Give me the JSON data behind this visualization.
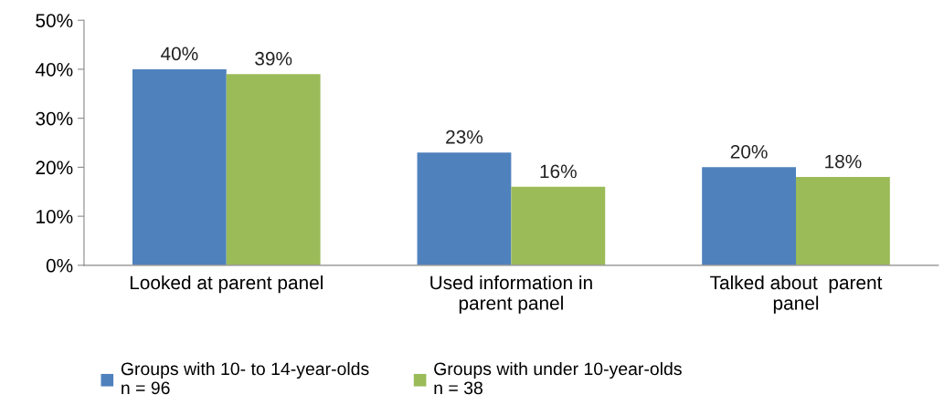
{
  "chart_data": {
    "type": "bar",
    "categories": [
      "Looked at parent panel",
      "Used information in\nparent panel",
      "Talked about  parent\npanel"
    ],
    "series": [
      {
        "name": "Groups with 10- to 14-year-olds\nn = 96",
        "color": "#4f81bd",
        "values": [
          40,
          23,
          20
        ],
        "value_labels": [
          "40%",
          "23%",
          "20%"
        ]
      },
      {
        "name": "Groups with under 10-year-olds\nn = 38",
        "color": "#9bbb59",
        "values": [
          39,
          16,
          18
        ],
        "value_labels": [
          "39%",
          "16%",
          "18%"
        ]
      }
    ],
    "ylim": [
      0,
      50
    ],
    "yticks": [
      {
        "value": 0,
        "label": "0%"
      },
      {
        "value": 10,
        "label": "10%"
      },
      {
        "value": 20,
        "label": "20%"
      },
      {
        "value": 30,
        "label": "30%"
      },
      {
        "value": 40,
        "label": "40%"
      },
      {
        "value": 50,
        "label": "50%"
      }
    ],
    "grid": false,
    "legend": "bottom"
  }
}
